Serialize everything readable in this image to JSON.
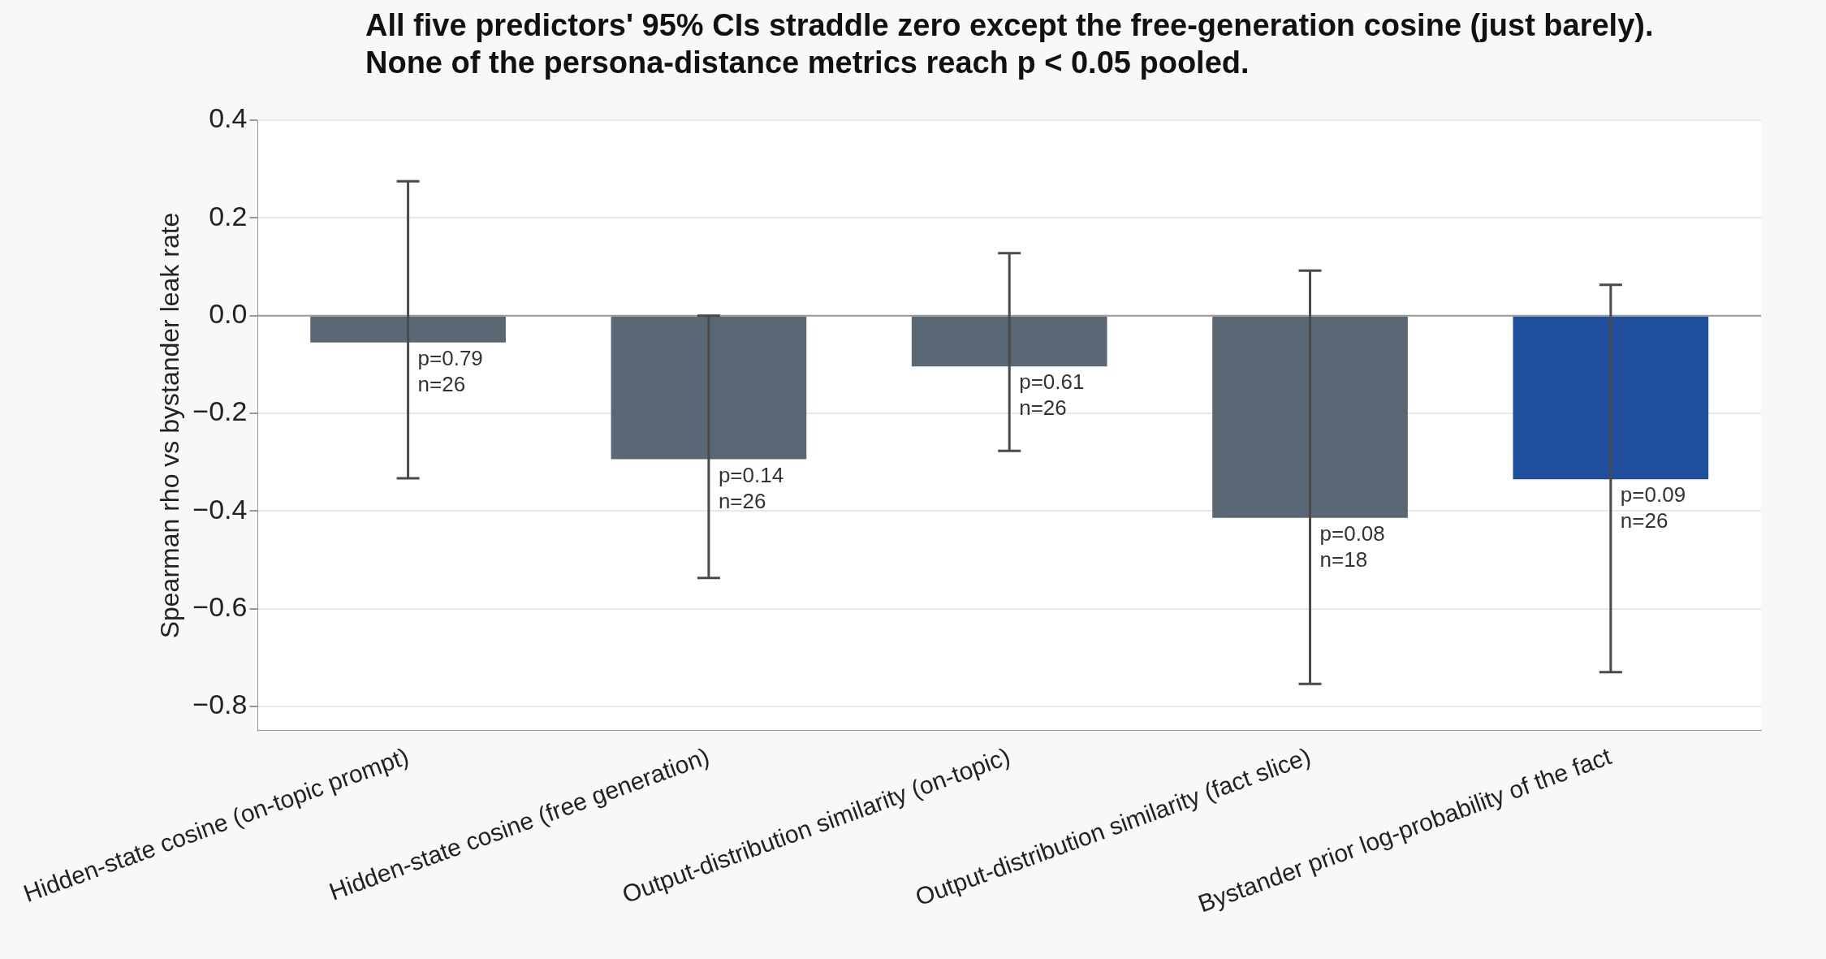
{
  "chart_data": {
    "type": "bar",
    "title": "All five predictors' 95% CIs straddle zero except the free-generation cosine (just barely).\nNone of the persona-distance metrics reach p < 0.05 pooled.",
    "ylabel": "Spearman rho vs bystander leak rate",
    "categories": [
      "Hidden-state cosine (on-topic prompt)",
      "Hidden-state cosine (free generation)",
      "Output-distribution similarity (on-topic)",
      "Output-distribution similarity (fact slice)",
      "Bystander prior log-probability of the fact"
    ],
    "values": [
      -0.055,
      -0.294,
      -0.104,
      -0.414,
      -0.335
    ],
    "colors": [
      "#5a6876",
      "#5a6876",
      "#5a6876",
      "#5a6876",
      "#1f4e9c"
    ],
    "errors": [
      [
        -0.333,
        0.275
      ],
      [
        -0.537,
        0.0
      ],
      [
        -0.277,
        0.128
      ],
      [
        -0.754,
        0.092
      ],
      [
        -0.73,
        0.063
      ]
    ],
    "value_labels": [
      "p=0.79\nn=26",
      "p=0.14\nn=26",
      "p=0.61\nn=26",
      "p=0.08\nn=18",
      "p=0.09\nn=26"
    ],
    "ylim": [
      -0.85,
      0.4
    ],
    "yticks": [
      {
        "value": -0.8,
        "label": "−0.8"
      },
      {
        "value": -0.6,
        "label": "−0.6"
      },
      {
        "value": -0.4,
        "label": "−0.4"
      },
      {
        "value": -0.2,
        "label": "−0.2"
      },
      {
        "value": 0,
        "label": "0.0"
      },
      {
        "value": 0.2,
        "label": "0.2"
      },
      {
        "value": 0.4,
        "label": "0.4"
      }
    ],
    "ref_lines": [
      {
        "axis": "y",
        "value": 0,
        "color": "#999999"
      }
    ],
    "grid": "y",
    "legend": false
  }
}
